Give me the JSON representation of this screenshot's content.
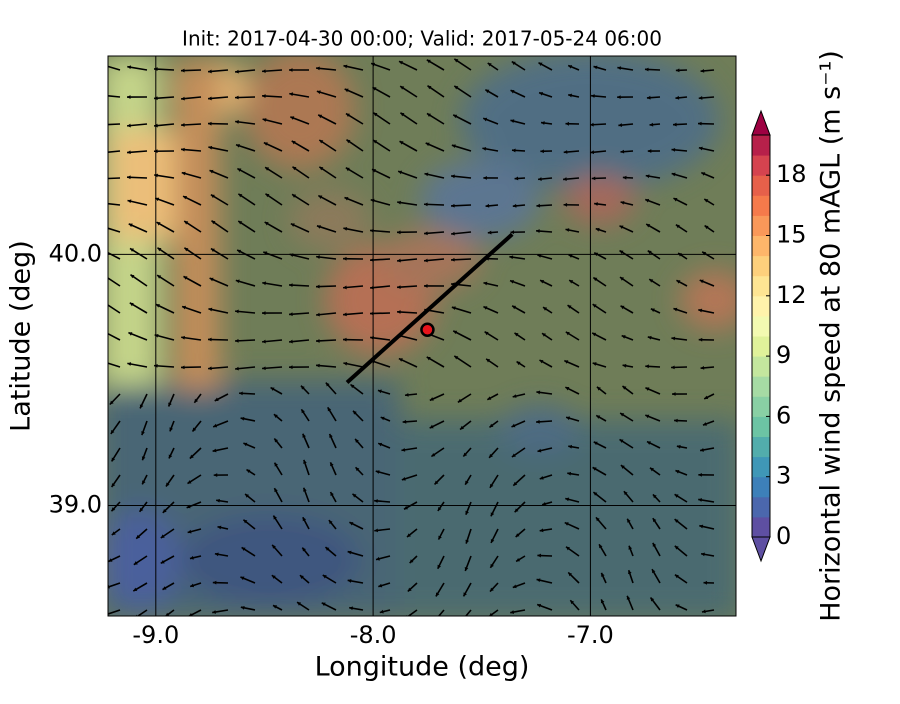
{
  "chart_data": {
    "type": "map",
    "title": "Init: 2017-04-30 00:00; Valid: 2017-05-24 06:00",
    "x_label": "Longitude (deg)",
    "y_label": "Latitude (deg)",
    "xlim": [
      -9.22,
      -6.33
    ],
    "ylim": [
      38.56,
      40.79
    ],
    "xticks": [
      {
        "value": -9.0,
        "label": "-9.0"
      },
      {
        "value": -8.0,
        "label": "-8.0"
      },
      {
        "value": -7.0,
        "label": "-7.0"
      }
    ],
    "yticks": [
      {
        "value": 39.0,
        "label": "39.0"
      },
      {
        "value": 40.0,
        "label": "40.0"
      }
    ],
    "grid": true,
    "transect": {
      "lon": [
        -8.12,
        -7.36
      ],
      "lat": [
        39.49,
        40.08
      ],
      "color": "#000000"
    },
    "site": {
      "lon": -7.75,
      "lat": 39.7,
      "color": "#e8141c"
    },
    "colorbar": {
      "label": "Horizontal wind speed at 80 mAGL (m s⁻¹)",
      "lim": [
        0,
        20
      ],
      "ticks": [
        0,
        3,
        6,
        9,
        12,
        15,
        18
      ],
      "colors": [
        "#5e4fa2",
        "#4b67ad",
        "#3d80b9",
        "#3f97b7",
        "#52adac",
        "#6cc4a4",
        "#89d0a4",
        "#a6dba4",
        "#c4e79e",
        "#e0f29a",
        "#f3fab1",
        "#fff3ab",
        "#fee593",
        "#fdd07c",
        "#fdb66a",
        "#f99859",
        "#f57a4b",
        "#e6604a",
        "#d5434f",
        "#b7204a"
      ],
      "under": "#5e4fa2",
      "over": "#9e0142"
    }
  }
}
